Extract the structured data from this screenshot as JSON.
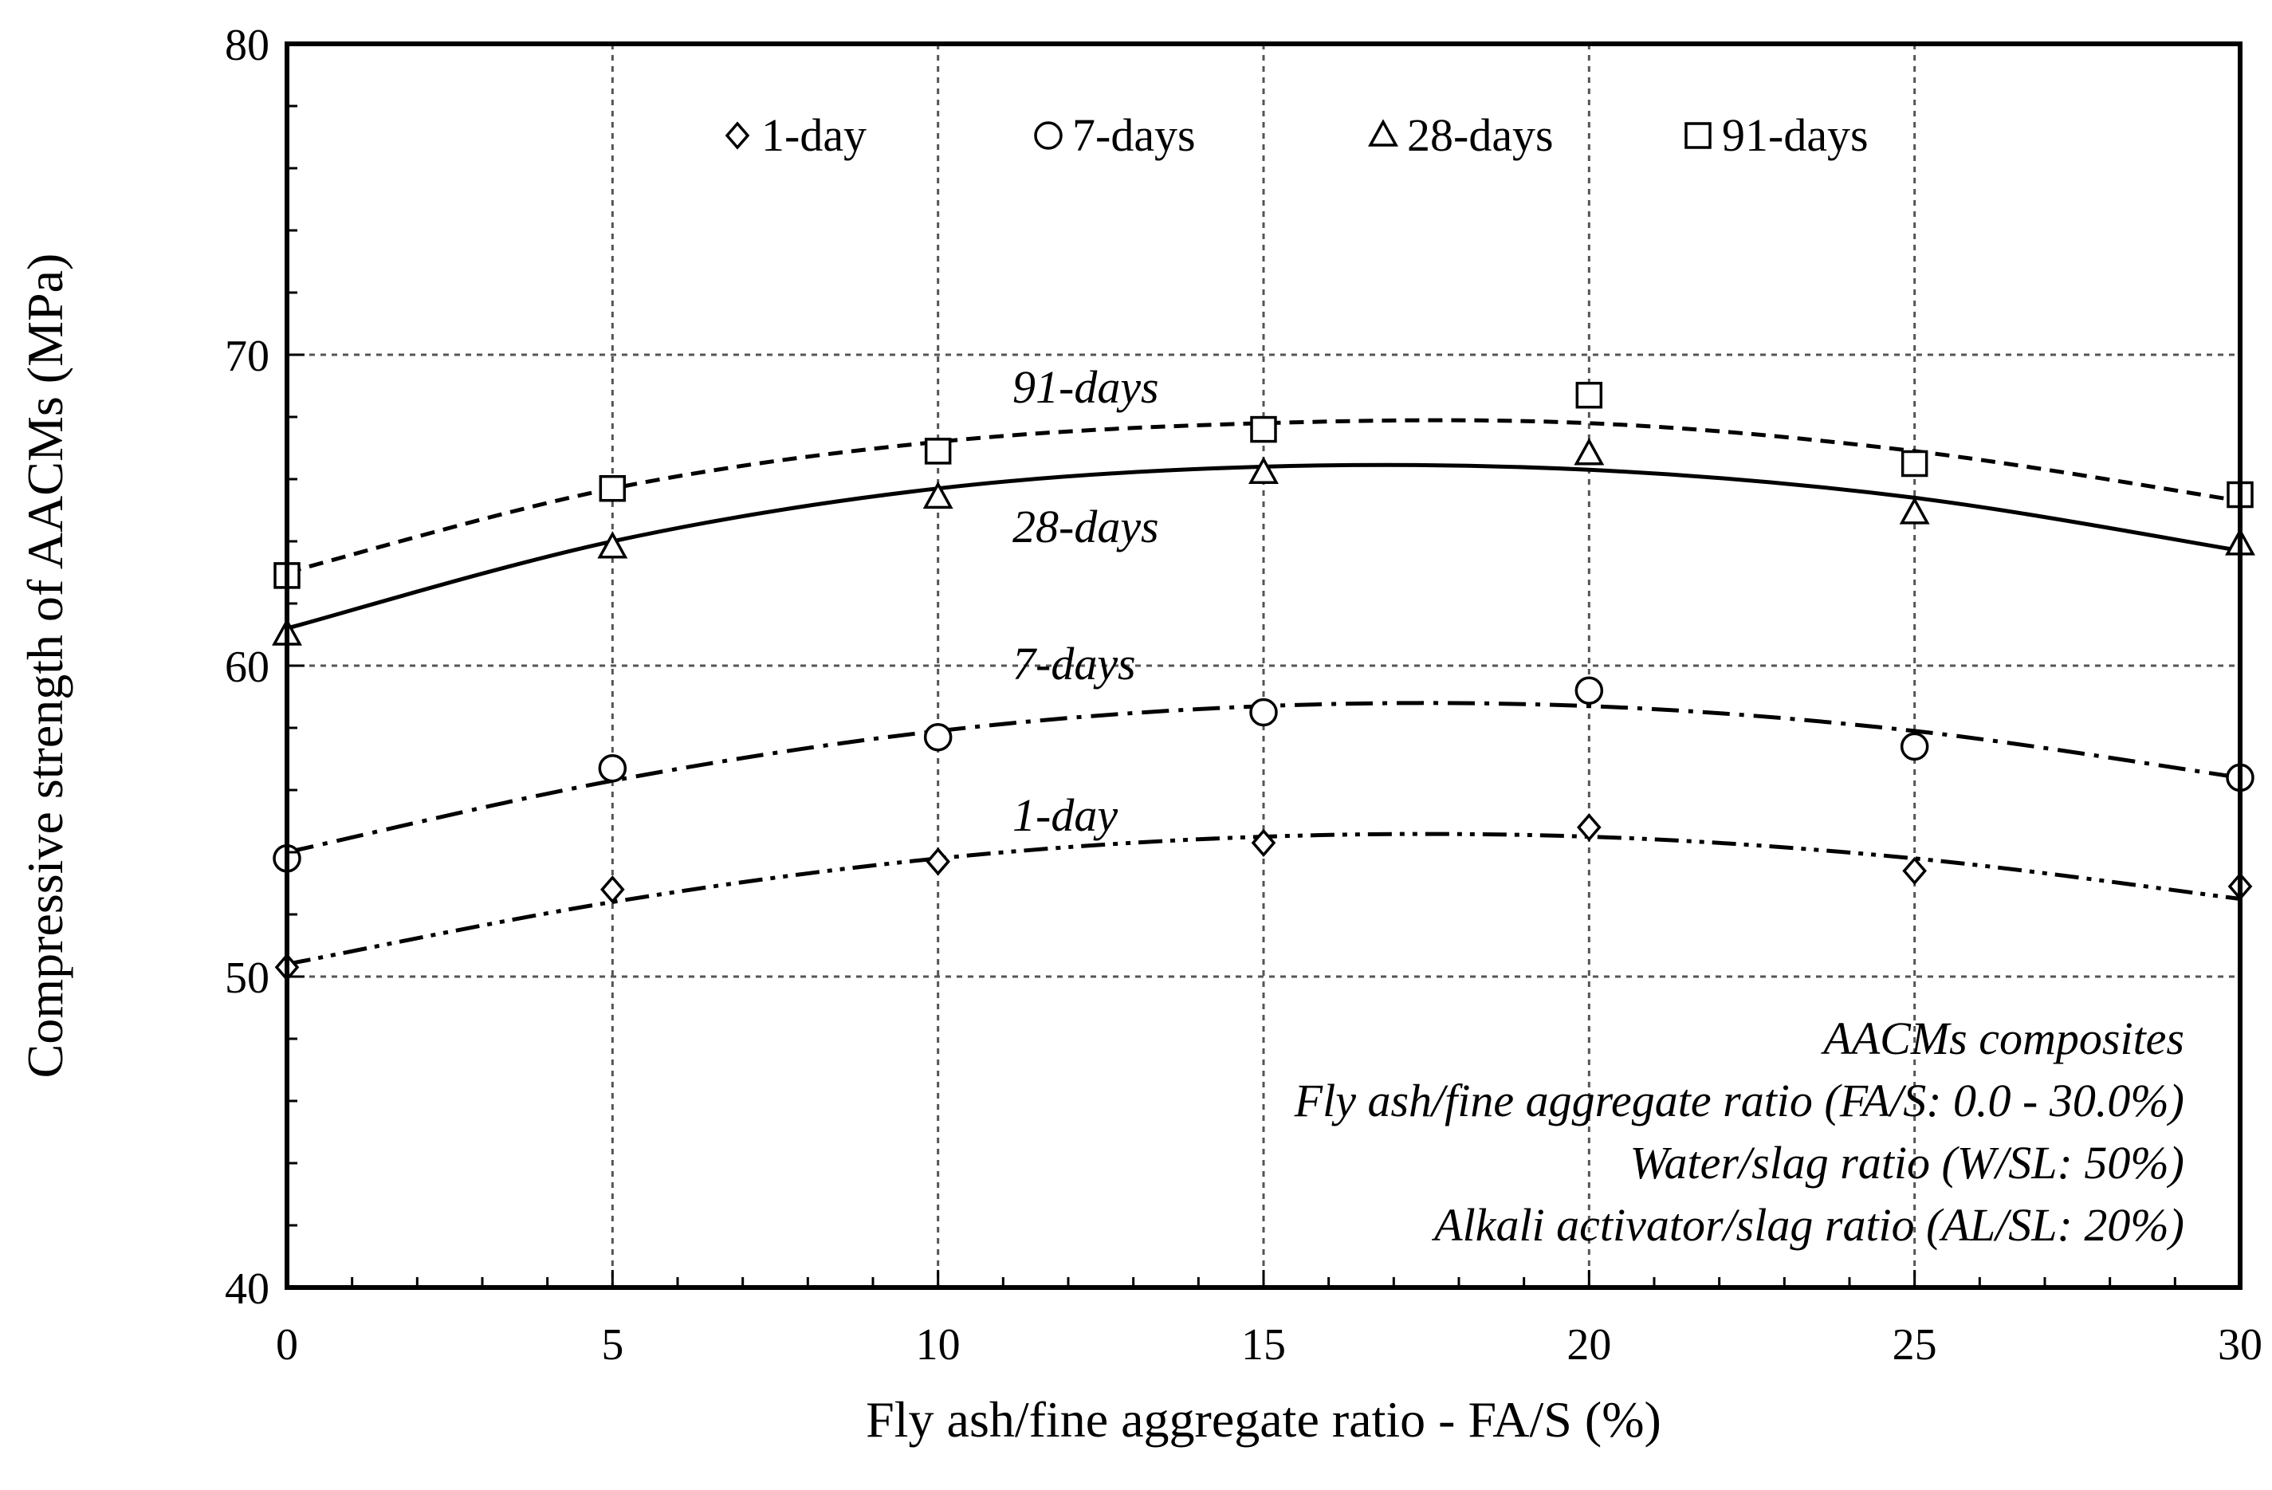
{
  "chart_data": {
    "type": "line",
    "x": [
      0,
      5,
      10,
      15,
      20,
      25,
      30
    ],
    "xlabel": "Fly ash/fine aggregate ratio - FA/S (%)",
    "ylabel": "Compressive strength of AACMs (MPa)",
    "xlim": [
      0,
      30
    ],
    "ylim": [
      40,
      80
    ],
    "xticks": [
      "0",
      "5",
      "10",
      "15",
      "20",
      "25",
      "30"
    ],
    "yticks": [
      "40",
      "50",
      "60",
      "70",
      "80"
    ],
    "grid": true,
    "legend_position": "top",
    "series": [
      {
        "name": "1-day",
        "marker": "diamond",
        "line_style": "dash-dot-dot",
        "curve_label": "1-day",
        "values": [
          50.3,
          52.8,
          53.7,
          54.3,
          54.8,
          53.4,
          52.9
        ],
        "fit": [
          50.4,
          52.4,
          53.8,
          54.5,
          54.5,
          53.8,
          52.5
        ]
      },
      {
        "name": "7-days",
        "marker": "circle",
        "line_style": "dash-dot",
        "curve_label": "7-days",
        "values": [
          53.8,
          56.7,
          57.7,
          58.5,
          59.2,
          57.4,
          56.4
        ],
        "fit": [
          54.0,
          56.3,
          57.9,
          58.7,
          58.7,
          57.9,
          56.4
        ]
      },
      {
        "name": "28-days",
        "marker": "triangle",
        "line_style": "solid",
        "curve_label": "28-days",
        "values": [
          61.0,
          63.8,
          65.4,
          66.2,
          66.8,
          64.9,
          63.9
        ],
        "fit": [
          61.2,
          64.0,
          65.7,
          66.4,
          66.3,
          65.4,
          63.7
        ]
      },
      {
        "name": "91-days",
        "marker": "square",
        "line_style": "dashed",
        "curve_label": "91-days",
        "values": [
          62.9,
          65.7,
          66.9,
          67.6,
          68.7,
          66.5,
          65.5
        ],
        "fit": [
          63.0,
          65.7,
          67.2,
          67.8,
          67.8,
          66.9,
          65.3
        ]
      }
    ],
    "annotations": [
      "AACMs  composites",
      "Fly ash/fine aggregate ratio (FA/S:  0.0 - 30.0%)",
      "Water/slag ratio (W/SL:  50%)",
      "Alkali activator/slag ratio (AL/SL:  20%)"
    ]
  }
}
